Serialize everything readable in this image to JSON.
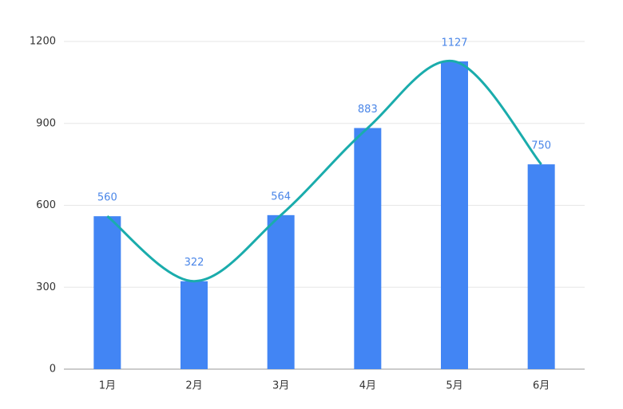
{
  "chart_data": {
    "type": "bar",
    "categories": [
      "1月",
      "2月",
      "3月",
      "4月",
      "5月",
      "6月"
    ],
    "values": [
      560,
      322,
      564,
      883,
      1127,
      750
    ],
    "color": "#4285f4",
    "line_color": "#1aacac",
    "smooth_line": true,
    "ylim": [
      0,
      1200
    ],
    "yticks": [
      0,
      300,
      600,
      900,
      1200
    ],
    "grid": true
  }
}
